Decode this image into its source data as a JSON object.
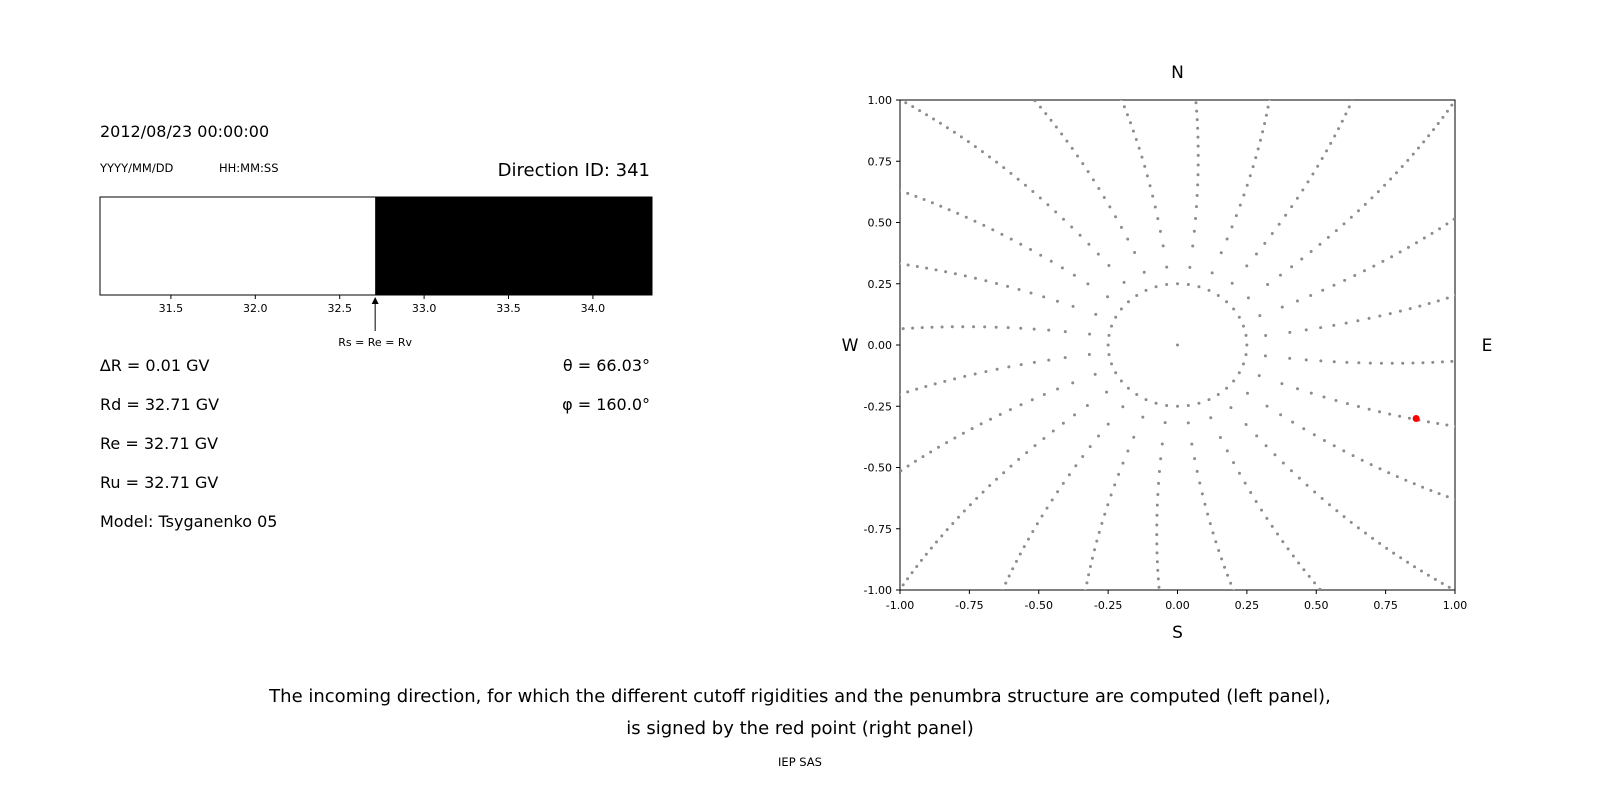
{
  "page": {
    "background": "#ffffff",
    "caption": {
      "line1": "The incoming direction, for which the different cutoff rigidities and the penumbra structure are computed (left panel),",
      "line2": "is signed by the red point (right panel)"
    },
    "credit": "IEP SAS"
  },
  "left_panel": {
    "datetime": "2012/08/23 00:00:00",
    "date_format_label": "YYYY/MM/DD",
    "time_format_label": "HH:MM:SS",
    "direction_title": "Direction ID: 341",
    "values": [
      "∆R = 0.01 GV",
      "Rd = 32.71 GV",
      "Re = 32.71 GV",
      "Ru = 32.71 GV",
      "Model: Tsyganenko 05"
    ],
    "angles": [
      "θ = 66.03°",
      "φ = 160.0°"
    ]
  },
  "chart_data": [
    {
      "id": "penumbra",
      "type": "area",
      "title": "",
      "xlim": [
        31.08,
        34.35
      ],
      "boundary": 32.71,
      "segments": [
        {
          "from": 31.08,
          "to": 32.71,
          "color": "#ffffff"
        },
        {
          "from": 32.71,
          "to": 34.35,
          "color": "#000000"
        }
      ],
      "xticks": [
        31.5,
        32.0,
        32.5,
        33.0,
        33.5,
        34.0
      ],
      "xtick_labels": [
        "31.5",
        "32.0",
        "32.5",
        "33.0",
        "33.5",
        "34.0"
      ],
      "marker": {
        "x": 32.71,
        "label": "Rs = Re = Rv"
      }
    },
    {
      "id": "direction-map",
      "type": "scatter",
      "title": "",
      "xlim": [
        -1.0,
        1.0
      ],
      "ylim": [
        -1.0,
        1.0
      ],
      "xticks": [
        -1.0,
        -0.75,
        -0.5,
        -0.25,
        0.0,
        0.25,
        0.5,
        0.75,
        1.0
      ],
      "yticks": [
        -1.0,
        -0.75,
        -0.5,
        -0.25,
        0.0,
        0.25,
        0.5,
        0.75,
        1.0
      ],
      "tick_labels": [
        "-1.00",
        "-0.75",
        "-0.50",
        "-0.25",
        "0.00",
        "0.25",
        "0.50",
        "0.75",
        "1.00"
      ],
      "compass": {
        "top": "N",
        "bottom": "S",
        "left": "W",
        "right": "E"
      },
      "dot_color": "#8c8c8c",
      "pattern": {
        "spokes": {
          "count": 24,
          "angle_step_deg": 15,
          "r_start": 0.32,
          "r_end": 1.42,
          "points_per_spoke": 30,
          "density_power": 0.75,
          "swirl_deg": -8
        },
        "inner_ring": {
          "radius": 0.25,
          "points": 40
        },
        "center_point": true
      },
      "highlight_point": {
        "x": 0.86,
        "y": -0.3,
        "color": "#ff0000"
      }
    }
  ]
}
